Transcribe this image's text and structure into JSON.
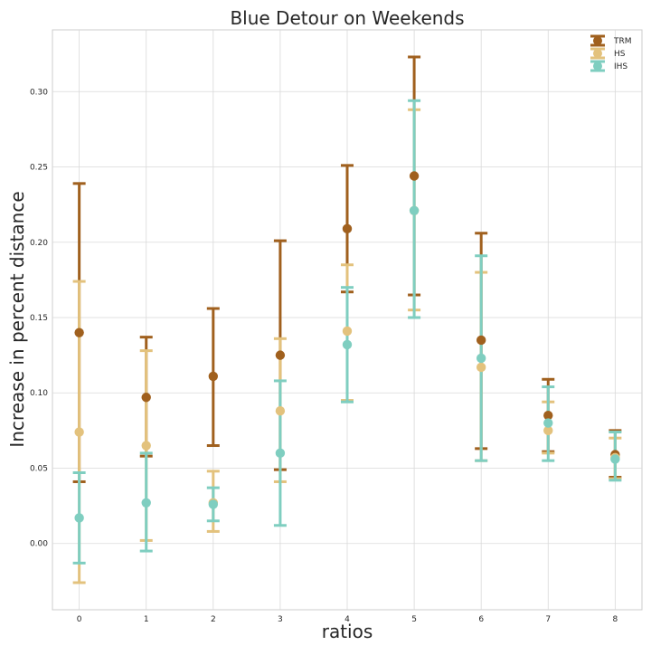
{
  "chart_data": {
    "type": "scatter",
    "subtype": "errorbar",
    "title": "Blue Detour on Weekends",
    "xlabel": "ratios",
    "ylabel": "Increase in percent distance",
    "x": [
      0,
      1,
      2,
      3,
      4,
      5,
      6,
      7,
      8
    ],
    "xticks": [
      "0",
      "1",
      "2",
      "3",
      "4",
      "5",
      "6",
      "7",
      "8"
    ],
    "xlim": [
      -0.4,
      8.4
    ],
    "ylim": [
      -0.044,
      0.341
    ],
    "yticks": [
      "0.00",
      "0.05",
      "0.10",
      "0.15",
      "0.20",
      "0.25",
      "0.30"
    ],
    "grid": true,
    "legend_position": "top-right",
    "series": [
      {
        "name": "TRM",
        "color": "#a0601e",
        "values": [
          0.14,
          0.097,
          0.111,
          0.125,
          0.209,
          0.244,
          0.135,
          0.085,
          0.059
        ],
        "lower": [
          0.041,
          0.058,
          0.065,
          0.049,
          0.167,
          0.165,
          0.063,
          0.061,
          0.044
        ],
        "upper": [
          0.239,
          0.137,
          0.156,
          0.201,
          0.251,
          0.323,
          0.206,
          0.109,
          0.075
        ]
      },
      {
        "name": "HS",
        "color": "#e3c27d",
        "values": [
          0.074,
          0.065,
          0.027,
          0.088,
          0.141,
          0.221,
          0.117,
          0.075,
          0.057
        ],
        "lower": [
          -0.026,
          0.002,
          0.008,
          0.041,
          0.095,
          0.155,
          0.055,
          0.06,
          0.043
        ],
        "upper": [
          0.174,
          0.128,
          0.048,
          0.136,
          0.185,
          0.288,
          0.18,
          0.094,
          0.07
        ]
      },
      {
        "name": "IHS",
        "color": "#7fcec0",
        "values": [
          0.017,
          0.027,
          0.026,
          0.06,
          0.132,
          0.221,
          0.123,
          0.08,
          0.056
        ],
        "lower": [
          -0.013,
          -0.005,
          0.015,
          0.012,
          0.094,
          0.15,
          0.055,
          0.055,
          0.042
        ],
        "upper": [
          0.047,
          0.06,
          0.037,
          0.108,
          0.17,
          0.294,
          0.191,
          0.104,
          0.074
        ]
      }
    ]
  }
}
